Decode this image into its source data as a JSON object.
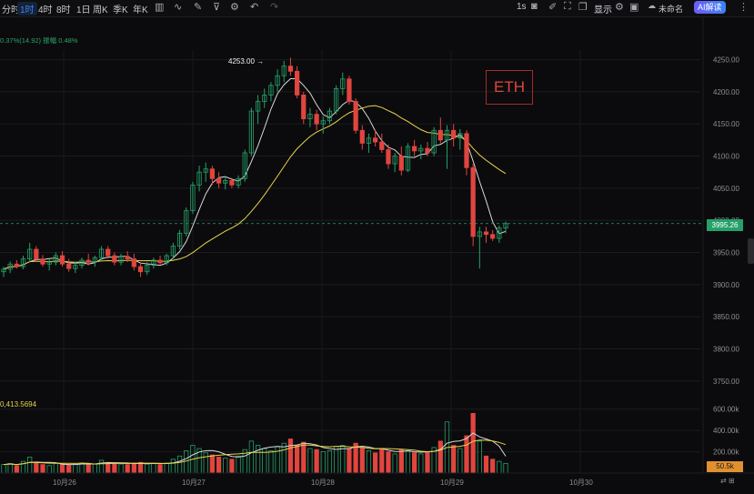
{
  "toolbar": {
    "intervals": [
      "分时",
      "1时",
      "4时",
      "8时",
      "1日",
      "周K",
      "季K",
      "年K"
    ],
    "active_interval": "1时",
    "tools": [
      "chart-type-icon",
      "indicator-icon",
      "draw-icon",
      "filter-icon",
      "settings-icon",
      "undo-icon",
      "redo-icon"
    ],
    "right": {
      "refresh": "1s",
      "show_label": "显示",
      "layout_name": "未命名",
      "ai_button": "AI解读"
    }
  },
  "info_line": "0.37%(14.92)  振幅 0.48%",
  "volume_label": "0,413.5694",
  "colors": {
    "up": "#26a069",
    "down": "#e0453e",
    "ma_fast": "#d8d8d8",
    "ma_slow": "#e8d34a",
    "background": "#0b0b0d"
  },
  "chart_data": {
    "type": "candlestick",
    "symbol_label": "ETH",
    "price_axis": {
      "ticks": [
        4250,
        4200,
        4150,
        4100,
        4050,
        4000,
        3950,
        3900,
        3850,
        3800,
        3750
      ],
      "min": 3720,
      "max": 4265
    },
    "volume_axis": {
      "ticks": [
        "600.00k",
        "400.00k",
        "200.00k"
      ],
      "max": 700000
    },
    "time_axis": {
      "labels": [
        "10月26",
        "10月27",
        "10月28",
        "10月29",
        "10月30"
      ]
    },
    "current_price": "3995.26",
    "current_volume": "50.5k",
    "peak_label": "4253.00",
    "candles": [
      [
        3920,
        3928,
        3912,
        3924
      ],
      [
        3924,
        3936,
        3918,
        3932
      ],
      [
        3932,
        3938,
        3925,
        3928
      ],
      [
        3928,
        3945,
        3924,
        3940
      ],
      [
        3940,
        3965,
        3935,
        3955
      ],
      [
        3955,
        3960,
        3935,
        3940
      ],
      [
        3940,
        3946,
        3928,
        3932
      ],
      [
        3932,
        3940,
        3922,
        3935
      ],
      [
        3935,
        3950,
        3930,
        3945
      ],
      [
        3945,
        3952,
        3928,
        3932
      ],
      [
        3932,
        3940,
        3920,
        3925
      ],
      [
        3925,
        3935,
        3918,
        3930
      ],
      [
        3930,
        3942,
        3925,
        3938
      ],
      [
        3938,
        3948,
        3930,
        3935
      ],
      [
        3935,
        3945,
        3928,
        3942
      ],
      [
        3942,
        3960,
        3938,
        3955
      ],
      [
        3955,
        3960,
        3940,
        3945
      ],
      [
        3945,
        3950,
        3930,
        3935
      ],
      [
        3935,
        3948,
        3930,
        3944
      ],
      [
        3944,
        3952,
        3935,
        3940
      ],
      [
        3940,
        3948,
        3922,
        3928
      ],
      [
        3928,
        3935,
        3912,
        3920
      ],
      [
        3920,
        3935,
        3915,
        3930
      ],
      [
        3930,
        3942,
        3925,
        3938
      ],
      [
        3938,
        3945,
        3930,
        3934
      ],
      [
        3934,
        3948,
        3930,
        3945
      ],
      [
        3945,
        3965,
        3940,
        3960
      ],
      [
        3960,
        3985,
        3955,
        3980
      ],
      [
        3980,
        4020,
        3975,
        4015
      ],
      [
        4015,
        4060,
        4010,
        4055
      ],
      [
        4055,
        4085,
        4045,
        4075
      ],
      [
        4075,
        4090,
        4060,
        4080
      ],
      [
        4080,
        4085,
        4055,
        4065
      ],
      [
        4065,
        4075,
        4050,
        4058
      ],
      [
        4058,
        4068,
        4048,
        4062
      ],
      [
        4062,
        4066,
        4050,
        4055
      ],
      [
        4055,
        4070,
        4050,
        4065
      ],
      [
        4065,
        4110,
        4060,
        4105
      ],
      [
        4105,
        4175,
        4100,
        4170
      ],
      [
        4170,
        4195,
        4150,
        4185
      ],
      [
        4185,
        4205,
        4175,
        4195
      ],
      [
        4195,
        4215,
        4185,
        4210
      ],
      [
        4210,
        4235,
        4200,
        4225
      ],
      [
        4225,
        4248,
        4215,
        4240
      ],
      [
        4240,
        4253,
        4225,
        4232
      ],
      [
        4232,
        4240,
        4190,
        4195
      ],
      [
        4195,
        4200,
        4150,
        4158
      ],
      [
        4158,
        4175,
        4145,
        4165
      ],
      [
        4165,
        4172,
        4140,
        4150
      ],
      [
        4150,
        4162,
        4135,
        4155
      ],
      [
        4155,
        4175,
        4150,
        4170
      ],
      [
        4170,
        4210,
        4165,
        4205
      ],
      [
        4205,
        4230,
        4195,
        4220
      ],
      [
        4220,
        4225,
        4180,
        4185
      ],
      [
        4185,
        4190,
        4135,
        4140
      ],
      [
        4140,
        4148,
        4110,
        4120
      ],
      [
        4120,
        4135,
        4105,
        4128
      ],
      [
        4128,
        4140,
        4115,
        4122
      ],
      [
        4122,
        4135,
        4105,
        4110
      ],
      [
        4110,
        4118,
        4080,
        4088
      ],
      [
        4088,
        4105,
        4075,
        4100
      ],
      [
        4100,
        4115,
        4070,
        4078
      ],
      [
        4078,
        4120,
        4075,
        4115
      ],
      [
        4115,
        4125,
        4100,
        4108
      ],
      [
        4108,
        4118,
        4095,
        4112
      ],
      [
        4112,
        4122,
        4100,
        4105
      ],
      [
        4105,
        4145,
        4100,
        4140
      ],
      [
        4140,
        4160,
        4120,
        4125
      ],
      [
        4125,
        4148,
        4080,
        4140
      ],
      [
        4140,
        4150,
        4115,
        4128
      ],
      [
        4128,
        4142,
        4110,
        4135
      ],
      [
        4135,
        4140,
        4070,
        4082
      ],
      [
        4082,
        4088,
        3960,
        3975
      ],
      [
        3975,
        3990,
        3925,
        3982
      ],
      [
        3982,
        3990,
        3965,
        3978
      ],
      [
        3978,
        3985,
        3968,
        3972
      ],
      [
        3972,
        3992,
        3965,
        3988
      ],
      [
        3988,
        3998,
        3980,
        3995
      ]
    ],
    "volumes": [
      80,
      90,
      70,
      110,
      150,
      95,
      80,
      70,
      90,
      85,
      75,
      80,
      95,
      90,
      85,
      120,
      100,
      90,
      85,
      80,
      95,
      100,
      85,
      90,
      80,
      95,
      130,
      160,
      210,
      260,
      230,
      190,
      170,
      150,
      140,
      130,
      160,
      220,
      300,
      260,
      230,
      210,
      250,
      280,
      320,
      260,
      290,
      230,
      220,
      200,
      210,
      250,
      260,
      230,
      280,
      240,
      210,
      190,
      230,
      200,
      180,
      220,
      210,
      190,
      180,
      200,
      240,
      300,
      480,
      260,
      230,
      350,
      560,
      300,
      160,
      130,
      110,
      90
    ]
  }
}
